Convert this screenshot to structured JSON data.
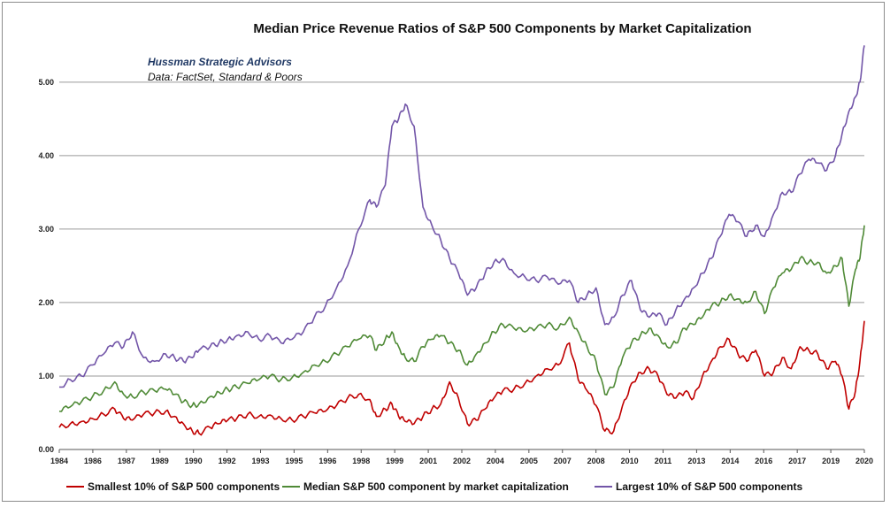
{
  "chart_data": {
    "type": "line",
    "title": "Median Price Revenue Ratios of S&P 500 Components by Market Capitalization",
    "annotations": [
      "Hussman Strategic Advisors",
      "Data: FactSet, Standard & Poors"
    ],
    "xlabel": "",
    "ylabel": "",
    "xlim": [
      1984,
      2020.3
    ],
    "ylim": [
      0,
      5.6
    ],
    "y_ticks": [
      "0.00",
      "1.00",
      "2.00",
      "3.00",
      "4.00",
      "5.00"
    ],
    "y_tick_values": [
      0,
      1,
      2,
      3,
      4,
      5
    ],
    "x_ticks": [
      "1984",
      "1986",
      "1987",
      "1989",
      "1990",
      "1992",
      "1993",
      "1995",
      "1996",
      "1998",
      "1999",
      "2001",
      "2002",
      "2004",
      "2005",
      "2007",
      "2008",
      "2010",
      "2011",
      "2013",
      "2014",
      "2016",
      "2017",
      "2019",
      "2020"
    ],
    "grid": "horizontal",
    "legend_position": "bottom",
    "series": [
      {
        "name": "Smallest 10% of S&P 500 components",
        "color": "#c00000",
        "x": [
          1984.0,
          1984.5,
          1985.0,
          1985.5,
          1986.0,
          1986.5,
          1986.9,
          1987.3,
          1987.8,
          1988.3,
          1988.8,
          1989.2,
          1989.6,
          1990.0,
          1990.3,
          1990.8,
          1991.2,
          1991.6,
          1992.0,
          1992.5,
          1993.0,
          1993.5,
          1994.0,
          1994.5,
          1995.0,
          1995.5,
          1996.0,
          1996.5,
          1997.0,
          1997.5,
          1998.0,
          1998.3,
          1998.7,
          1999.0,
          1999.3,
          1999.6,
          2000.0,
          2000.4,
          2000.8,
          2001.2,
          2001.6,
          2002.0,
          2002.4,
          2002.8,
          2003.2,
          2003.6,
          2004.0,
          2004.5,
          2005.0,
          2005.5,
          2006.0,
          2006.5,
          2007.0,
          2007.4,
          2007.8,
          2008.2,
          2008.6,
          2009.0,
          2009.4,
          2009.8,
          2010.2,
          2010.6,
          2011.0,
          2011.4,
          2011.8,
          2012.2,
          2012.6,
          2013.0,
          2013.4,
          2013.8,
          2014.2,
          2014.6,
          2015.0,
          2015.4,
          2015.8,
          2016.2,
          2016.6,
          2017.0,
          2017.4,
          2017.8,
          2018.2,
          2018.6,
          2019.0,
          2019.3,
          2019.6,
          2019.9,
          2020.1,
          2020.3
        ],
        "values": [
          0.3,
          0.35,
          0.38,
          0.42,
          0.48,
          0.55,
          0.42,
          0.4,
          0.48,
          0.5,
          0.52,
          0.45,
          0.35,
          0.25,
          0.22,
          0.3,
          0.35,
          0.4,
          0.42,
          0.48,
          0.45,
          0.47,
          0.42,
          0.4,
          0.45,
          0.5,
          0.52,
          0.6,
          0.7,
          0.75,
          0.68,
          0.45,
          0.55,
          0.62,
          0.45,
          0.38,
          0.35,
          0.45,
          0.55,
          0.62,
          0.92,
          0.7,
          0.35,
          0.4,
          0.55,
          0.7,
          0.8,
          0.82,
          0.9,
          1.0,
          1.1,
          1.15,
          1.45,
          0.95,
          0.8,
          0.6,
          0.25,
          0.25,
          0.6,
          0.9,
          1.05,
          1.1,
          1.0,
          0.75,
          0.7,
          0.78,
          0.7,
          1.0,
          1.2,
          1.4,
          1.5,
          1.3,
          1.2,
          1.35,
          1.0,
          1.05,
          1.25,
          1.1,
          1.4,
          1.35,
          1.3,
          1.1,
          1.2,
          1.0,
          0.55,
          0.8,
          1.2,
          1.75
        ]
      },
      {
        "name": "Median S&P 500 component by market capitalization",
        "color": "#4f8a36",
        "x": [
          1984.0,
          1984.5,
          1985.0,
          1985.5,
          1986.0,
          1986.5,
          1986.9,
          1987.3,
          1987.8,
          1988.3,
          1988.8,
          1989.2,
          1989.6,
          1990.0,
          1990.3,
          1990.8,
          1991.2,
          1991.6,
          1992.0,
          1992.5,
          1993.0,
          1993.5,
          1994.0,
          1994.5,
          1995.0,
          1995.5,
          1996.0,
          1996.5,
          1997.0,
          1997.5,
          1998.0,
          1998.3,
          1998.7,
          1999.0,
          1999.3,
          1999.6,
          2000.0,
          2000.4,
          2000.8,
          2001.2,
          2001.6,
          2002.0,
          2002.4,
          2002.8,
          2003.2,
          2003.6,
          2004.0,
          2004.5,
          2005.0,
          2005.5,
          2006.0,
          2006.5,
          2007.0,
          2007.4,
          2007.8,
          2008.2,
          2008.6,
          2009.0,
          2009.4,
          2009.8,
          2010.2,
          2010.6,
          2011.0,
          2011.4,
          2011.8,
          2012.2,
          2012.6,
          2013.0,
          2013.4,
          2013.8,
          2014.2,
          2014.6,
          2015.0,
          2015.4,
          2015.8,
          2016.2,
          2016.6,
          2017.0,
          2017.4,
          2017.8,
          2018.2,
          2018.6,
          2019.0,
          2019.3,
          2019.6,
          2019.9,
          2020.1,
          2020.3
        ],
        "values": [
          0.52,
          0.58,
          0.65,
          0.72,
          0.8,
          0.92,
          0.75,
          0.72,
          0.78,
          0.8,
          0.82,
          0.75,
          0.65,
          0.6,
          0.62,
          0.72,
          0.78,
          0.82,
          0.85,
          0.9,
          0.95,
          1.0,
          0.95,
          0.98,
          1.05,
          1.15,
          1.2,
          1.3,
          1.4,
          1.5,
          1.55,
          1.35,
          1.5,
          1.6,
          1.4,
          1.25,
          1.2,
          1.4,
          1.5,
          1.55,
          1.45,
          1.35,
          1.15,
          1.3,
          1.45,
          1.6,
          1.7,
          1.65,
          1.6,
          1.65,
          1.7,
          1.65,
          1.8,
          1.6,
          1.4,
          1.2,
          0.75,
          0.85,
          1.25,
          1.45,
          1.55,
          1.65,
          1.55,
          1.4,
          1.45,
          1.65,
          1.7,
          1.8,
          1.95,
          2.0,
          2.1,
          2.05,
          2.0,
          2.15,
          1.85,
          2.2,
          2.4,
          2.45,
          2.6,
          2.55,
          2.55,
          2.4,
          2.5,
          2.6,
          1.95,
          2.45,
          2.6,
          3.05
        ]
      },
      {
        "name": "Largest 10% of S&P 500 components",
        "color": "#7255a8",
        "x": [
          1984.0,
          1984.5,
          1985.0,
          1985.5,
          1986.0,
          1986.5,
          1986.9,
          1987.3,
          1987.8,
          1988.3,
          1988.8,
          1989.2,
          1989.6,
          1990.0,
          1990.3,
          1990.8,
          1991.2,
          1991.6,
          1992.0,
          1992.5,
          1993.0,
          1993.5,
          1994.0,
          1994.5,
          1995.0,
          1995.5,
          1996.0,
          1996.5,
          1997.0,
          1997.5,
          1998.0,
          1998.3,
          1998.7,
          1999.0,
          1999.3,
          1999.6,
          2000.0,
          2000.4,
          2000.8,
          2001.2,
          2001.6,
          2002.0,
          2002.4,
          2002.8,
          2003.2,
          2003.6,
          2004.0,
          2004.5,
          2005.0,
          2005.5,
          2006.0,
          2006.5,
          2007.0,
          2007.4,
          2007.8,
          2008.2,
          2008.6,
          2009.0,
          2009.4,
          2009.8,
          2010.2,
          2010.6,
          2011.0,
          2011.4,
          2011.8,
          2012.2,
          2012.6,
          2013.0,
          2013.4,
          2013.8,
          2014.2,
          2014.6,
          2015.0,
          2015.4,
          2015.8,
          2016.2,
          2016.6,
          2017.0,
          2017.4,
          2017.8,
          2018.2,
          2018.6,
          2019.0,
          2019.3,
          2019.6,
          2019.9,
          2020.1,
          2020.3
        ],
        "values": [
          0.85,
          0.95,
          1.0,
          1.15,
          1.3,
          1.45,
          1.4,
          1.6,
          1.25,
          1.2,
          1.3,
          1.25,
          1.2,
          1.25,
          1.35,
          1.4,
          1.45,
          1.5,
          1.55,
          1.6,
          1.5,
          1.55,
          1.45,
          1.5,
          1.6,
          1.8,
          1.95,
          2.2,
          2.5,
          3.0,
          3.4,
          3.3,
          3.6,
          4.4,
          4.5,
          4.7,
          4.4,
          3.3,
          3.05,
          2.85,
          2.6,
          2.4,
          2.1,
          2.2,
          2.4,
          2.55,
          2.6,
          2.4,
          2.35,
          2.3,
          2.35,
          2.25,
          2.3,
          2.0,
          2.1,
          2.2,
          1.7,
          1.8,
          2.1,
          2.3,
          1.9,
          1.8,
          1.85,
          1.7,
          1.9,
          2.05,
          2.2,
          2.4,
          2.6,
          2.9,
          3.2,
          3.1,
          2.9,
          3.05,
          2.9,
          3.2,
          3.5,
          3.5,
          3.75,
          3.95,
          3.9,
          3.8,
          4.0,
          4.3,
          4.6,
          4.8,
          5.0,
          5.5
        ]
      }
    ]
  }
}
